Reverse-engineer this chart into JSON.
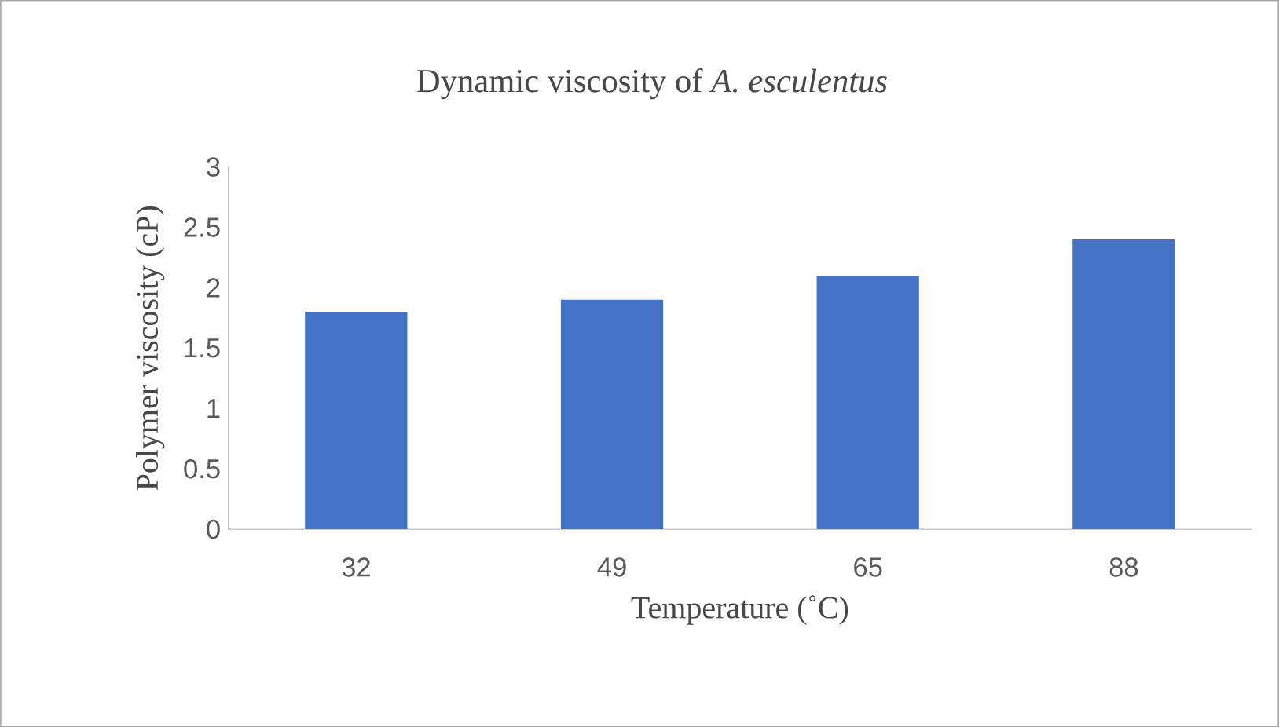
{
  "chart_data": {
    "type": "bar",
    "title": "Dynamic viscosity of *A. esculentus*",
    "xlabel": "Temperature (˚C)",
    "ylabel": "Polymer viscosity (cP)",
    "categories": [
      "32",
      "49",
      "65",
      "88"
    ],
    "values": [
      1.8,
      1.9,
      2.1,
      2.4
    ],
    "color": "#4472c4",
    "ylim": [
      0,
      3
    ],
    "yticks": [
      0,
      0.5,
      1,
      1.5,
      2,
      2.5,
      3
    ],
    "grid": false
  }
}
